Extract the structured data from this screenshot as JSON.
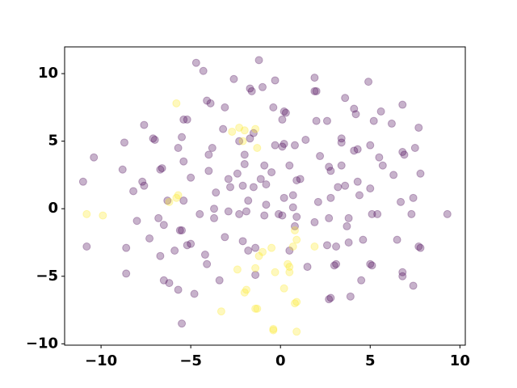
{
  "chart_data": {
    "type": "scatter",
    "xlim": [
      -12.03,
      10.3
    ],
    "ylim": [
      -10.1,
      11.98
    ],
    "xticks": [
      {
        "value": -10,
        "label": "−10"
      },
      {
        "value": -5,
        "label": "−5"
      },
      0,
      5,
      10
    ],
    "yticks": [
      {
        "value": -10,
        "label": "−10"
      },
      {
        "value": -5,
        "label": "−5"
      },
      0,
      5,
      10
    ],
    "alpha": 0.3,
    "series": [
      {
        "color": "#440154",
        "x": [
          -4.7,
          -1.2,
          -4.3,
          -2.6,
          -0.3,
          1.9,
          4.9,
          -1.7,
          -1.0,
          -1.6,
          1.9,
          2.0,
          -4.1,
          -3.9,
          -3.1,
          -0.4,
          3.6,
          4.1,
          4.2,
          6.8,
          5.6,
          5.2,
          0.2,
          0.3,
          0.1,
          2.0,
          2.6,
          6.2,
          -7.6,
          -5.2,
          -5.4,
          -7.1,
          -7.0,
          -8.7,
          -3.2,
          -1.5,
          -1.7,
          -2.3,
          -0.3,
          0.2,
          0.1,
          0.8,
          1.4,
          3.4,
          3.4,
          4.3,
          5.0,
          7.7,
          6.8,
          6.9,
          7.5,
          5.5,
          5.7,
          -5.7,
          -5.5,
          -3.8,
          -4.0,
          -2.0,
          -10.4,
          -6.7,
          -6.6,
          -5.4,
          -5.0,
          -8.8,
          -6.3,
          -5.4,
          -4.0,
          -2.4,
          -2.9,
          -2.0,
          -0.9,
          -0.5,
          0.5,
          1.1,
          0.9,
          2.2,
          2.7,
          2.8,
          3.4,
          4.1,
          4.3,
          3.6,
          5.0,
          6.3,
          7.8,
          -11.0,
          -7.7,
          -8.2,
          -7.6,
          -3.6,
          -2.8,
          -2.1,
          -1.5,
          -1.1,
          -0.8,
          0.2,
          -0.1,
          0.7,
          0.7,
          2.1,
          2.8,
          4.4,
          3.2,
          6.7,
          7.4,
          9.3,
          -10.8,
          -8.0,
          -6.8,
          -6.5,
          -8.6,
          -7.3,
          -5.6,
          -5.5,
          -4.5,
          -3.7,
          -3.7,
          -2.9,
          -2.3,
          -1.9,
          -1.8,
          -0.9,
          -0.8,
          0.1,
          0.9,
          0.8,
          1.9,
          2.7,
          3.8,
          3.7,
          5.1,
          5.4,
          7.3,
          4.6,
          3.8,
          6.5,
          7.7,
          7.8,
          -5.0,
          -5.2,
          -5.9,
          -6.7,
          -4.2,
          -4.1,
          -3.1,
          -2.1,
          -1.8,
          -1.4,
          0.5,
          1.5,
          3.0,
          3.1,
          2.6,
          3.1,
          5.0,
          5.1,
          6.8,
          6.8,
          7.4,
          -8.6,
          -6.5,
          -6.2,
          -5.7,
          -4.8,
          -3.4,
          -1.4,
          2.8,
          2.7,
          3.9,
          4.5,
          -5.5
        ],
        "y": [
          10.8,
          11.0,
          10.2,
          9.6,
          9.5,
          9.7,
          9.4,
          8.9,
          9.0,
          8.7,
          8.7,
          8.7,
          8.0,
          7.8,
          7.5,
          7.5,
          8.2,
          7.4,
          7.0,
          7.7,
          7.2,
          6.5,
          7.2,
          7.1,
          6.6,
          6.5,
          6.5,
          6.3,
          6.2,
          6.6,
          6.6,
          5.2,
          5.1,
          4.9,
          5.9,
          5.6,
          5.2,
          5.0,
          4.7,
          4.8,
          4.6,
          4.7,
          5.1,
          5.2,
          4.9,
          4.4,
          4.7,
          6.0,
          4.2,
          4.0,
          4.5,
          3.8,
          3.2,
          4.5,
          5.3,
          4.5,
          4.0,
          4.0,
          3.8,
          2.9,
          3.0,
          3.5,
          2.3,
          2.9,
          0.6,
          0.6,
          2.8,
          2.6,
          2.2,
          3.3,
          3.2,
          2.7,
          3.2,
          2.2,
          2.1,
          3.9,
          3.1,
          2.8,
          3.2,
          4.3,
          2.0,
          1.7,
          1.5,
          2.5,
          2.6,
          2.0,
          2.0,
          1.3,
          1.7,
          1.2,
          1.6,
          1.7,
          1.6,
          2.2,
          1.8,
          0.8,
          -0.4,
          1.0,
          0.1,
          0.5,
          0.8,
          1.0,
          1.6,
          0.5,
          0.8,
          -0.4,
          -2.8,
          -0.9,
          -0.7,
          -1.2,
          -2.9,
          -2.2,
          -1.6,
          -1.6,
          -0.4,
          0.0,
          -0.7,
          -0.2,
          -0.4,
          -0.2,
          0.6,
          -0.5,
          0.3,
          -0.5,
          -0.6,
          -1.3,
          -1.0,
          -0.7,
          -0.7,
          -1.3,
          -0.4,
          -0.4,
          -0.4,
          -2.3,
          -2.5,
          -2.3,
          -2.8,
          -2.9,
          -2.6,
          -2.7,
          -3.1,
          -3.5,
          -3.4,
          -4.1,
          -2.1,
          -2.4,
          -3.1,
          -2.9,
          -3.1,
          -4.3,
          -4.2,
          -4.1,
          -2.7,
          -2.8,
          -4.1,
          -4.2,
          -4.7,
          -5.0,
          -5.7,
          -4.8,
          -5.3,
          -5.5,
          -6.0,
          -6.3,
          -5.3,
          -4.9,
          -6.6,
          -6.7,
          -6.5,
          -5.3,
          -8.5
        ]
      },
      {
        "color": "#fde725",
        "x": [
          -5.8,
          -2.7,
          -2.3,
          -2.0,
          -1.4,
          -2.1,
          -1.3,
          -10.8,
          -9.9,
          -6.2,
          -5.8,
          -5.7,
          -0.5,
          -1.0,
          -0.3,
          0.5,
          0.4,
          0.5,
          0.8,
          0.9,
          0.7,
          1.9,
          -2.4,
          -1.4,
          -1.9,
          -2.0,
          0.2,
          0.9,
          0.8,
          -1.4,
          -1.3,
          -3.3,
          -0.4,
          -0.4,
          0.9,
          -1.2
        ],
        "y": [
          7.8,
          5.7,
          6.0,
          5.8,
          5.9,
          5.0,
          4.5,
          -0.4,
          -0.5,
          0.5,
          0.8,
          1.0,
          -2.9,
          -3.2,
          -4.7,
          -4.3,
          -4.1,
          -4.7,
          -1.6,
          -2.3,
          -2.8,
          -2.8,
          -4.5,
          -4.4,
          -6.0,
          -6.2,
          -5.9,
          -6.9,
          -7.0,
          -7.4,
          -7.4,
          -7.6,
          -8.9,
          -9.0,
          -9.1,
          -3.5
        ]
      }
    ]
  }
}
